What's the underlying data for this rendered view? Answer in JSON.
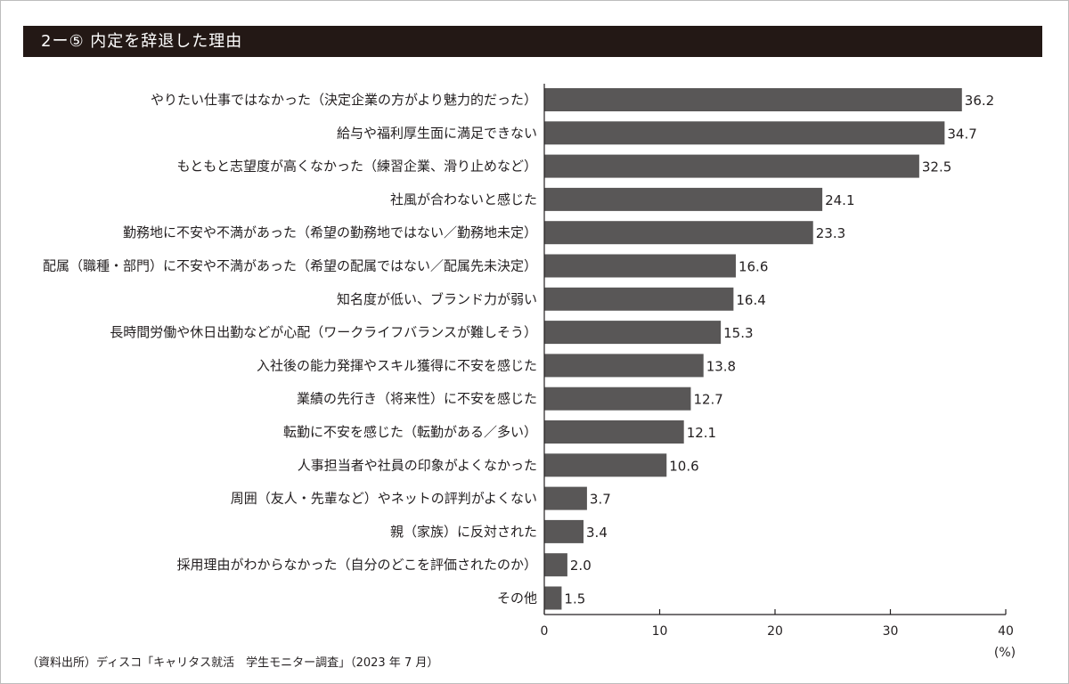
{
  "title": "2ー⑤ 内定を辞退した理由",
  "source": "（資料出所）ディスコ「キャリタス就活　学生モニター調査」（2023 年 7 月）",
  "unit_label": "(%)",
  "colors": {
    "bar": "#595757",
    "title_bg": "#231815",
    "axis": "#231f20"
  },
  "chart_data": {
    "type": "bar",
    "orientation": "horizontal",
    "categories": [
      "やりたい仕事ではなかった（決定企業の方がより魅力的だった）",
      "給与や福利厚生面に満足できない",
      "もともと志望度が高くなかった（練習企業、滑り止めなど）",
      "社風が合わないと感じた",
      "勤務地に不安や不満があった（希望の勤務地ではない／勤務地未定）",
      "配属（職種・部門）に不安や不満があった（希望の配属ではない／配属先未決定）",
      "知名度が低い、ブランド力が弱い",
      "長時間労働や休日出勤などが心配（ワークライフバランスが難しそう）",
      "入社後の能力発揮やスキル獲得に不安を感じた",
      "業績の先行き（将来性）に不安を感じた",
      "転勤に不安を感じた（転勤がある／多い）",
      "人事担当者や社員の印象がよくなかった",
      "周囲（友人・先輩など）やネットの評判がよくない",
      "親（家族）に反対された",
      "採用理由がわからなかった（自分のどこを評価されたのか）",
      "その他"
    ],
    "values": [
      36.2,
      34.7,
      32.5,
      24.1,
      23.3,
      16.6,
      16.4,
      15.3,
      13.8,
      12.7,
      12.1,
      10.6,
      3.7,
      3.4,
      2.0,
      1.5
    ],
    "value_labels": [
      "36.2",
      "34.7",
      "32.5",
      "24.1",
      "23.3",
      "16.6",
      "16.4",
      "15.3",
      "13.8",
      "12.7",
      "12.1",
      "10.6",
      "3.7",
      "3.4",
      "2.0",
      "1.5"
    ],
    "xlim": [
      0,
      40
    ],
    "xticks": [
      "0",
      "10",
      "20",
      "30",
      "40"
    ],
    "grid": false
  }
}
